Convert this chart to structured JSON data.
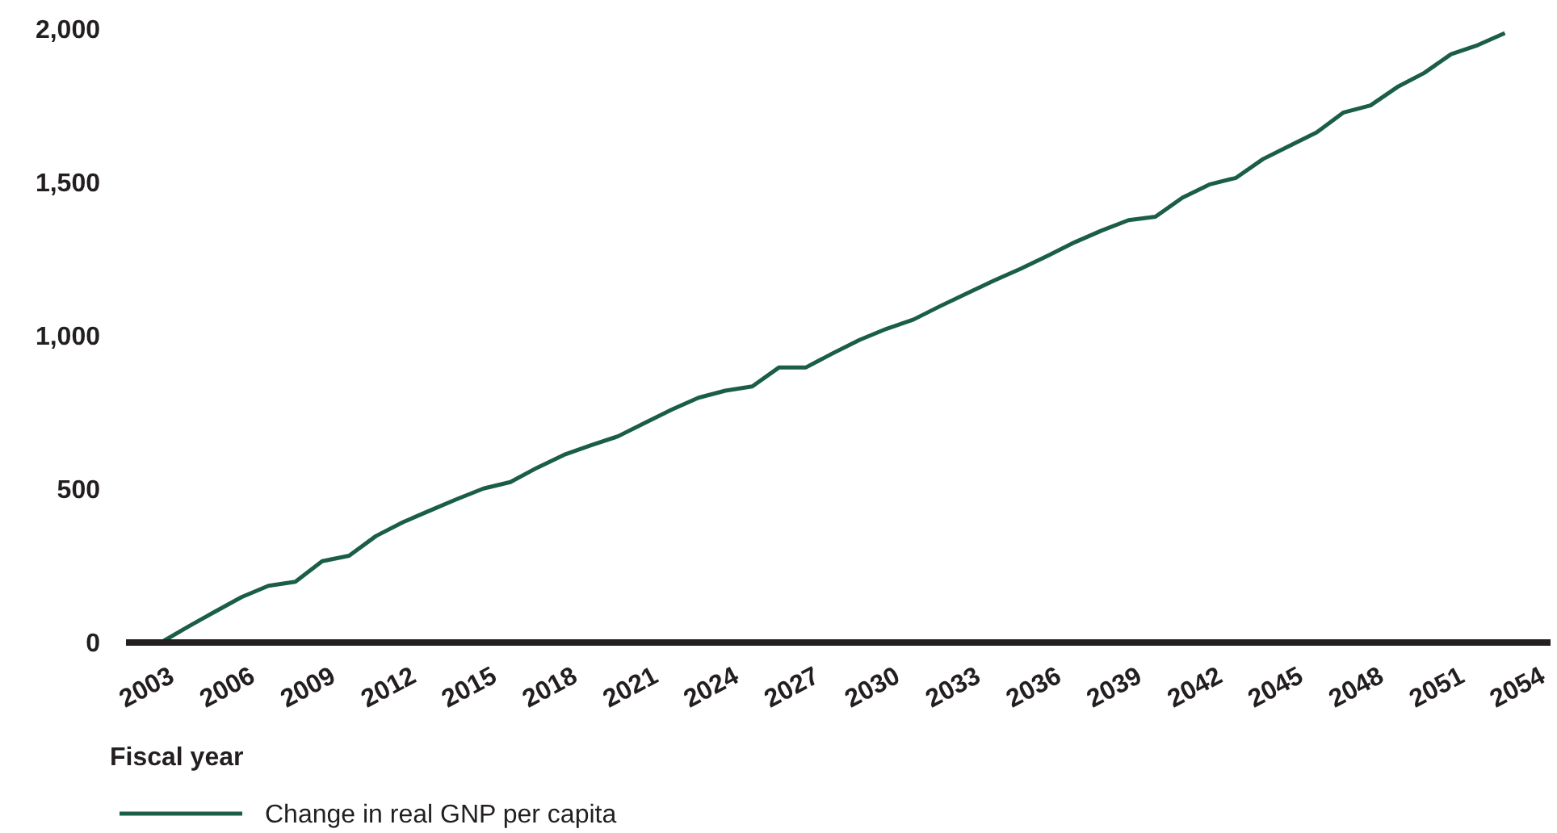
{
  "chart_data": {
    "type": "line",
    "xlabel": "Fiscal year",
    "x": [
      2003,
      2004,
      2005,
      2006,
      2007,
      2008,
      2009,
      2010,
      2011,
      2012,
      2013,
      2014,
      2015,
      2016,
      2017,
      2018,
      2019,
      2020,
      2021,
      2022,
      2023,
      2024,
      2025,
      2026,
      2027,
      2028,
      2029,
      2030,
      2031,
      2032,
      2033,
      2034,
      2035,
      2036,
      2037,
      2038,
      2039,
      2040,
      2041,
      2042,
      2043,
      2044,
      2045,
      2046,
      2047,
      2048,
      2049,
      2050,
      2051,
      2052,
      2053
    ],
    "series": [
      {
        "name": "Change in real GNP per capita",
        "color": "#1a5e45",
        "values": [
          0,
          51,
          100,
          148,
          185,
          198,
          265,
          283,
          347,
          392,
          430,
          467,
          502,
          523,
          570,
          612,
          643,
          672,
          716,
          759,
          798,
          821,
          835,
          897,
          897,
          943,
          987,
          1023,
          1053,
          1097,
          1139,
          1180,
          1219,
          1261,
          1305,
          1343,
          1377,
          1388,
          1450,
          1493,
          1515,
          1576,
          1620,
          1663,
          1728,
          1751,
          1811,
          1857,
          1918,
          1948,
          1987
        ]
      }
    ],
    "xlim": [
      2001.7,
      2054.7
    ],
    "xticks": [
      2003,
      2006,
      2009,
      2012,
      2015,
      2018,
      2021,
      2024,
      2027,
      2030,
      2033,
      2036,
      2039,
      2042,
      2045,
      2048,
      2051,
      2054
    ],
    "ylim": [
      0,
      2000
    ],
    "yticks": [
      0,
      {
        "value": 500,
        "label": "500"
      },
      {
        "value": 1000,
        "label": "1,000"
      },
      {
        "value": 1500,
        "label": "1,500"
      },
      {
        "value": 2000,
        "label": "2,000"
      }
    ],
    "grid": false,
    "legend": "bottom left",
    "marker": "none",
    "line_style": "solid"
  }
}
